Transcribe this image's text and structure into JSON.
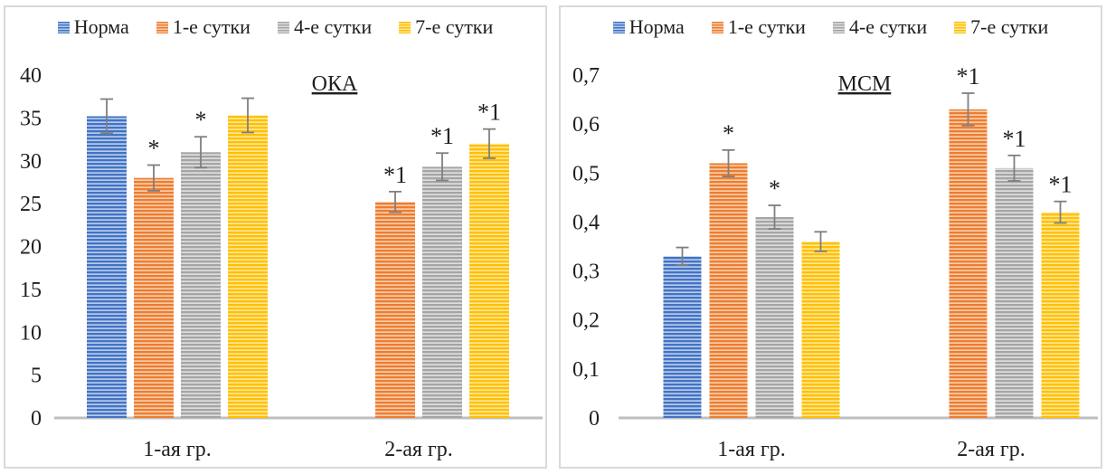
{
  "page": {
    "background": "#ffffff",
    "panel_border_color": "#d9d9d9",
    "axis_line_color": "#bfbfbf",
    "error_bar_color": "#7f7f7f",
    "text_color": "#1f1f1f"
  },
  "chart_data": [
    {
      "type": "bar",
      "title": "ОКА",
      "title_underlined": true,
      "legend_position": "top",
      "grid": false,
      "categories": [
        "1-ая гр.",
        "2-ая гр."
      ],
      "ylim": [
        0,
        40
      ],
      "ytick_step": 5,
      "decimals": 0,
      "decimal_comma": false,
      "series": [
        {
          "name": "Норма",
          "dark": "#4472c4",
          "light": "#b4cbea",
          "values": [
            35.2,
            null
          ],
          "errors": [
            2.0,
            null
          ],
          "labels": [
            "",
            ""
          ]
        },
        {
          "name": "1-е сутки",
          "dark": "#ed7d31",
          "light": "#f8cba8",
          "values": [
            28.0,
            25.2
          ],
          "errors": [
            1.5,
            1.2
          ],
          "labels": [
            "*",
            "*1"
          ]
        },
        {
          "name": "4-е сутки",
          "dark": "#a5a5a5",
          "light": "#dddddd",
          "values": [
            31.0,
            29.3
          ],
          "errors": [
            1.8,
            1.6
          ],
          "labels": [
            "*",
            "*1"
          ]
        },
        {
          "name": "7-е сутки",
          "dark": "#ffc000",
          "light": "#ffe699",
          "values": [
            35.3,
            32.0
          ],
          "errors": [
            2.0,
            1.7
          ],
          "labels": [
            "",
            "*1"
          ]
        }
      ]
    },
    {
      "type": "bar",
      "title": "МСМ",
      "title_underlined": true,
      "legend_position": "top",
      "grid": false,
      "categories": [
        "1-ая гр.",
        "2-ая гр."
      ],
      "ylim": [
        0,
        0.7
      ],
      "ytick_step": 0.1,
      "decimals": 1,
      "decimal_comma": true,
      "series": [
        {
          "name": "Норма",
          "dark": "#4472c4",
          "light": "#b4cbea",
          "values": [
            0.33,
            null
          ],
          "errors": [
            0.018,
            null
          ],
          "labels": [
            "",
            ""
          ]
        },
        {
          "name": "1-е сутки",
          "dark": "#ed7d31",
          "light": "#f8cba8",
          "values": [
            0.52,
            0.63
          ],
          "errors": [
            0.027,
            0.033
          ],
          "labels": [
            "*",
            "*1"
          ]
        },
        {
          "name": "4-е сутки",
          "dark": "#a5a5a5",
          "light": "#dddddd",
          "values": [
            0.41,
            0.51
          ],
          "errors": [
            0.024,
            0.026
          ],
          "labels": [
            "*",
            "*1"
          ]
        },
        {
          "name": "7-е сутки",
          "dark": "#ffc000",
          "light": "#ffe699",
          "values": [
            0.36,
            0.42
          ],
          "errors": [
            0.02,
            0.022
          ],
          "labels": [
            "",
            "*1"
          ]
        }
      ]
    }
  ]
}
